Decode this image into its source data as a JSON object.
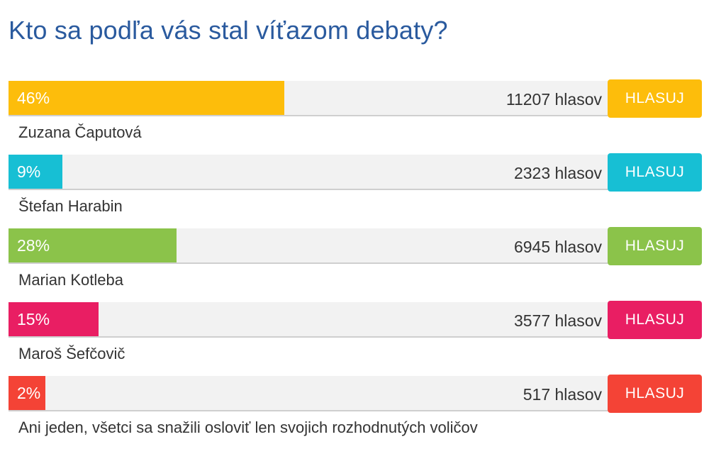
{
  "title": "Kto sa podľa vás stal víťazom debaty?",
  "options": [
    {
      "name": "Zuzana Čaputová",
      "percent_label": "46%",
      "percent": 46,
      "votes_label": "11207 hlasov",
      "button_label": "HLASUJ",
      "color": "#fdbd0b"
    },
    {
      "name": "Štefan Harabin",
      "percent_label": "9%",
      "percent": 9,
      "votes_label": "2323 hlasov",
      "button_label": "HLASUJ",
      "color": "#17bfd4"
    },
    {
      "name": "Marian Kotleba",
      "percent_label": "28%",
      "percent": 28,
      "votes_label": "6945 hlasov",
      "button_label": "HLASUJ",
      "color": "#8bc34a"
    },
    {
      "name": "Maroš Šefčovič",
      "percent_label": "15%",
      "percent": 15,
      "votes_label": "3577 hlasov",
      "button_label": "HLASUJ",
      "color": "#e91e63"
    },
    {
      "name": "Ani jeden, všetci sa snažili osloviť len svojich rozhodnutých voličov",
      "percent_label": "2%",
      "percent": 2,
      "votes_label": "517 hlasov",
      "button_label": "HLASUJ",
      "color": "#f44336"
    }
  ]
}
